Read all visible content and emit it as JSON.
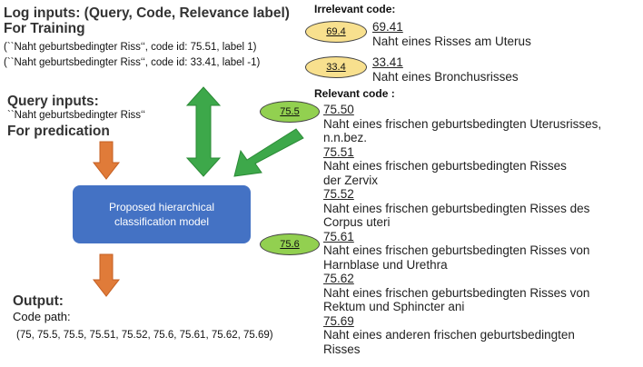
{
  "training": {
    "heading_line1": "Log inputs: (Query, Code, Relevance label)",
    "heading_line2": "For Training",
    "examples": [
      "(``Naht geburtsbedingter Riss‘‘,  code id: 75.51, label 1)",
      "(``Naht geburtsbedingter Riss‘‘,  code id: 33.41, label -1)"
    ]
  },
  "query": {
    "heading": "Query inputs:",
    "text": "``Naht geburtsbedingter Riss‘‘",
    "subheading": "For predication"
  },
  "model": {
    "label_line1": "Proposed hierarchical",
    "label_line2": "classification model"
  },
  "output": {
    "heading": "Output:",
    "path_label": "Code path:",
    "path": "(75, 75.5, 75.5, 75.51, 75.52, 75.6, 75.61, 75.62, 75.69)"
  },
  "irrelevant": {
    "title": "Irrelevant code:",
    "items": [
      {
        "badge": "69.4",
        "code": "69.41",
        "desc": "Naht eines Risses am Uterus"
      },
      {
        "badge": "33.4",
        "code": "33.41",
        "desc": "Naht eines Bronchusrisses"
      }
    ]
  },
  "relevant": {
    "title": "Relevant code :",
    "badges": [
      "75.5",
      "75.6"
    ],
    "items": [
      {
        "code": "75.50",
        "desc": [
          "Naht eines frischen geburtsbedingten Uterusrisses,",
          "n.n.bez."
        ]
      },
      {
        "code": "75.51",
        "desc": [
          "Naht eines frischen geburtsbedingten Risses",
          "der Zervix"
        ]
      },
      {
        "code": "75.52",
        "desc": [
          "Naht eines frischen geburtsbedingten Risses des",
          "Corpus uteri"
        ]
      },
      {
        "code": "75.61",
        "desc": [
          "Naht eines frischen geburtsbedingten Risses von",
          "Harnblase und Urethra"
        ]
      },
      {
        "code": "75.62",
        "desc": [
          "Naht eines frischen geburtsbedingten Risses von",
          "Rektum und Sphincter ani"
        ]
      },
      {
        "code": "75.69",
        "desc": [
          "Naht eines anderen frischen geburtsbedingten",
          "Risses"
        ]
      }
    ]
  },
  "colors": {
    "irrelevant_badge": "#f8e08e",
    "relevant_badge": "#92d050",
    "model_box": "#4472c4",
    "orange_arrow": "#e07b39",
    "green_arrow": "#3da84a"
  }
}
